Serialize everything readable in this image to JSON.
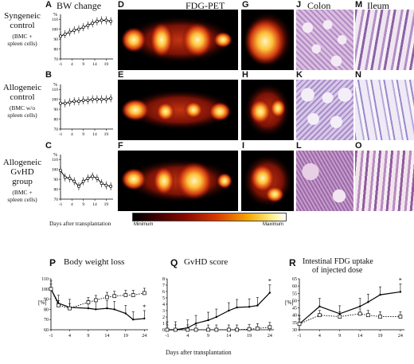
{
  "header": {
    "bw_change": "BW change",
    "fdg_pet": "FDG-PET",
    "colon": "Colon",
    "ileum": "Ileum"
  },
  "panel_letters": {
    "A": "A",
    "B": "B",
    "C": "C",
    "D": "D",
    "E": "E",
    "F": "F",
    "G": "G",
    "H": "H",
    "I": "I",
    "J": "J",
    "K": "K",
    "L": "L",
    "M": "M",
    "N": "N",
    "O": "O",
    "P": "P",
    "Q": "Q",
    "R": "R"
  },
  "rows": [
    {
      "title_1": "Syngeneic",
      "title_2": "control",
      "sub_1": "(BMC +",
      "sub_2": "spleen cells)"
    },
    {
      "title_1": "Allogeneic",
      "title_2": "control",
      "sub_1": "(BMC w/o",
      "sub_2": "spleen cells)"
    },
    {
      "title_1": "Allogeneic",
      "title_2": "GvHD group",
      "sub_1": "(BMC +",
      "sub_2": "spleen cells)"
    }
  ],
  "small_axis": {
    "unit": "%",
    "yticks": [
      "110",
      "100",
      "90",
      "80",
      "70"
    ],
    "xticks": [
      "-1",
      "4",
      "9",
      "14",
      "19"
    ],
    "xlabel": "Days after transplantation"
  },
  "colorbar": {
    "min_label": "Minimum",
    "max_label": "Maximum"
  },
  "bottom": {
    "xlabel": "Days after transplantation",
    "P_title": "Body weight loss",
    "Q_title": "GvHD score",
    "R_title_1": "Intestinal FDG uptake",
    "R_title_2": "of injected dose",
    "P_unit": "[%]",
    "R_unit": "[%]",
    "star": "*",
    "xticks": [
      "-1",
      "4",
      "9",
      "14",
      "19",
      "24"
    ]
  },
  "colors": {
    "pet_hot": "#ffd24a",
    "pet_mid": "#e0501a",
    "pet_low": "#7a0f05",
    "he_pink": "#d8b6d6",
    "he_purple": "#7a4f9a"
  },
  "chart_data": [
    {
      "type": "line",
      "panel": "A",
      "x": [
        -1,
        1,
        3,
        5,
        7,
        9,
        11,
        13,
        15,
        17,
        19,
        21
      ],
      "series": [
        {
          "values": [
            93,
            95,
            97,
            99,
            100,
            102,
            104,
            106,
            108,
            109,
            109,
            108
          ]
        }
      ],
      "ylim": [
        70,
        115
      ]
    },
    {
      "type": "line",
      "panel": "B",
      "x": [
        -1,
        1,
        3,
        5,
        7,
        9,
        11,
        13,
        15,
        17,
        19,
        21
      ],
      "series": [
        {
          "values": [
            96,
            96,
            97,
            98,
            98,
            99,
            99,
            100,
            100,
            100,
            100,
            101
          ]
        }
      ],
      "ylim": [
        70,
        115
      ]
    },
    {
      "type": "line",
      "panel": "C",
      "x": [
        -1,
        1,
        3,
        5,
        7,
        9,
        11,
        13,
        15,
        17,
        19,
        21
      ],
      "series": [
        {
          "values": [
            99,
            92,
            91,
            88,
            83,
            88,
            91,
            93,
            91,
            86,
            84,
            83
          ]
        }
      ],
      "ylim": [
        70,
        115
      ]
    },
    {
      "type": "line",
      "panel": "P",
      "x": [
        -1,
        1,
        4,
        9,
        11,
        14,
        16,
        19,
        21,
        24
      ],
      "series": [
        {
          "values": [
            100,
            86,
            82,
            81,
            80,
            81,
            80,
            76,
            70,
            71
          ]
        },
        {
          "values": [
            100,
            84,
            81,
            87,
            89,
            92,
            93,
            94,
            94,
            96
          ]
        }
      ],
      "yticks": [
        60,
        70,
        80,
        90,
        100,
        110
      ],
      "ylim": [
        60,
        110
      ]
    },
    {
      "type": "line",
      "panel": "Q",
      "x": [
        -1,
        1,
        4,
        6,
        9,
        11,
        14,
        16,
        19,
        21,
        24
      ],
      "series": [
        {
          "values": [
            0,
            0,
            0.3,
            1,
            1.5,
            2,
            3,
            3.5,
            3.6,
            3.8,
            5.8
          ]
        },
        {
          "values": [
            0,
            0,
            0,
            0,
            0,
            0,
            0,
            0,
            0.1,
            0.2,
            0.4
          ]
        }
      ],
      "yticks": [
        0,
        1,
        2,
        3,
        4,
        5,
        6,
        7,
        8
      ],
      "ylim": [
        0,
        8
      ]
    },
    {
      "type": "line",
      "panel": "R",
      "x": [
        -1,
        4,
        9,
        14,
        16,
        19,
        24
      ],
      "series": [
        {
          "values": [
            34,
            46,
            41,
            46,
            49,
            54,
            56
          ]
        },
        {
          "values": [
            34,
            40,
            39,
            41,
            40,
            39,
            39
          ]
        }
      ],
      "yticks": [
        30,
        35,
        40,
        45,
        50,
        55,
        60,
        65
      ],
      "ylim": [
        30,
        65
      ]
    }
  ]
}
